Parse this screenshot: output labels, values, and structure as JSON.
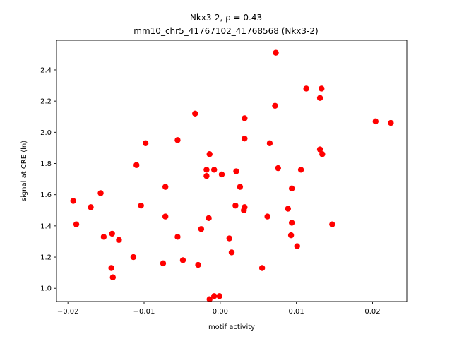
{
  "chart_data": {
    "type": "scatter",
    "title": "Nkx3-2, ρ = 0.43",
    "subtitle": "mm10_chr5_41767102_41768568 (Nkx3-2)",
    "xlabel": "motif activity",
    "ylabel": "signal at CRE (ln)",
    "xlim": [
      -0.0215,
      0.0245
    ],
    "ylim": [
      0.915,
      2.59
    ],
    "grid": false,
    "marker_color": "#ff0000",
    "xticks": [
      {
        "value": -0.02,
        "label": "−0.02"
      },
      {
        "value": -0.01,
        "label": "−0.01"
      },
      {
        "value": 0.0,
        "label": "0.00"
      },
      {
        "value": 0.01,
        "label": "0.01"
      },
      {
        "value": 0.02,
        "label": "0.02"
      }
    ],
    "yticks": [
      {
        "value": 1.0,
        "label": "1.0"
      },
      {
        "value": 1.2,
        "label": "1.2"
      },
      {
        "value": 1.4,
        "label": "1.4"
      },
      {
        "value": 1.6,
        "label": "1.6"
      },
      {
        "value": 1.8,
        "label": "1.8"
      },
      {
        "value": 2.0,
        "label": "2.0"
      },
      {
        "value": 2.2,
        "label": "2.2"
      },
      {
        "value": 2.4,
        "label": "2.4"
      }
    ],
    "points": [
      [
        0.0073,
        2.51
      ],
      [
        0.0113,
        2.28
      ],
      [
        0.0133,
        2.28
      ],
      [
        0.0131,
        2.22
      ],
      [
        0.0072,
        2.17
      ],
      [
        -0.0033,
        2.12
      ],
      [
        0.0032,
        2.09
      ],
      [
        0.0204,
        2.07
      ],
      [
        0.0224,
        2.06
      ],
      [
        -0.0056,
        1.95
      ],
      [
        0.0032,
        1.96
      ],
      [
        -0.0098,
        1.93
      ],
      [
        0.0065,
        1.93
      ],
      [
        0.0131,
        1.89
      ],
      [
        0.0134,
        1.86
      ],
      [
        -0.0014,
        1.86
      ],
      [
        -0.011,
        1.79
      ],
      [
        0.0076,
        1.77
      ],
      [
        0.0106,
        1.76
      ],
      [
        -0.0018,
        1.76
      ],
      [
        -0.0008,
        1.76
      ],
      [
        0.0002,
        1.73
      ],
      [
        0.0021,
        1.75
      ],
      [
        -0.0018,
        1.72
      ],
      [
        -0.0072,
        1.65
      ],
      [
        0.0026,
        1.65
      ],
      [
        0.0094,
        1.64
      ],
      [
        -0.0157,
        1.61
      ],
      [
        -0.0193,
        1.56
      ],
      [
        -0.017,
        1.52
      ],
      [
        -0.0104,
        1.53
      ],
      [
        0.002,
        1.53
      ],
      [
        0.0032,
        1.52
      ],
      [
        0.0031,
        1.5
      ],
      [
        0.0089,
        1.51
      ],
      [
        -0.0072,
        1.46
      ],
      [
        -0.0015,
        1.45
      ],
      [
        0.0062,
        1.46
      ],
      [
        -0.0189,
        1.41
      ],
      [
        0.0094,
        1.42
      ],
      [
        0.0147,
        1.41
      ],
      [
        -0.0025,
        1.38
      ],
      [
        -0.0142,
        1.35
      ],
      [
        -0.0153,
        1.33
      ],
      [
        -0.0133,
        1.31
      ],
      [
        -0.0056,
        1.33
      ],
      [
        0.0012,
        1.32
      ],
      [
        0.0093,
        1.34
      ],
      [
        0.0101,
        1.27
      ],
      [
        0.0015,
        1.23
      ],
      [
        -0.0114,
        1.2
      ],
      [
        -0.0049,
        1.18
      ],
      [
        -0.0075,
        1.16
      ],
      [
        -0.0029,
        1.15
      ],
      [
        -0.0143,
        1.13
      ],
      [
        0.0055,
        1.13
      ],
      [
        -0.0141,
        1.07
      ],
      [
        -0.0008,
        0.95
      ],
      [
        -0.0001,
        0.95
      ],
      [
        -0.0014,
        0.93
      ]
    ]
  }
}
